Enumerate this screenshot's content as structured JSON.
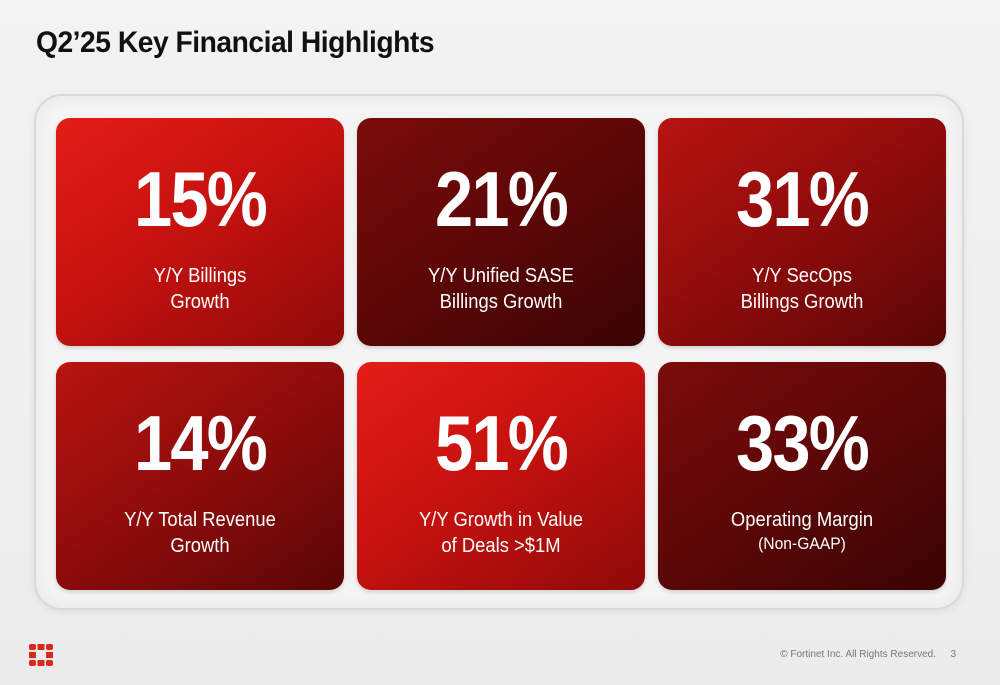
{
  "title": "Q2’25 Key Financial Highlights",
  "colors": {
    "bright_red": "#e31d17",
    "medium_red": "#b81410",
    "dark_red": "#5c0707",
    "text_white": "#ffffff",
    "logo_red": "#da291c"
  },
  "cards": [
    {
      "value": "15%",
      "line1": "Y/Y Billings",
      "line2": "Growth",
      "tone": "bright"
    },
    {
      "value": "21%",
      "line1": "Y/Y Unified SASE",
      "line2": "Billings Growth",
      "tone": "dark"
    },
    {
      "value": "31%",
      "line1": "Y/Y SecOps",
      "line2": "Billings Growth",
      "tone": "medium"
    },
    {
      "value": "14%",
      "line1": "Y/Y Total Revenue",
      "line2": "Growth",
      "tone": "medium"
    },
    {
      "value": "51%",
      "line1": "Y/Y Growth in Value",
      "line2": "of Deals >$1M",
      "tone": "bright"
    },
    {
      "value": "33%",
      "line1": "Operating Margin",
      "line2": "(Non-GAAP)",
      "tone": "dark"
    }
  ],
  "footer": {
    "logo_icon": "fortinet-logo-icon",
    "copyright": "© Fortinet Inc. All Rights Reserved.",
    "page_number": "3"
  }
}
